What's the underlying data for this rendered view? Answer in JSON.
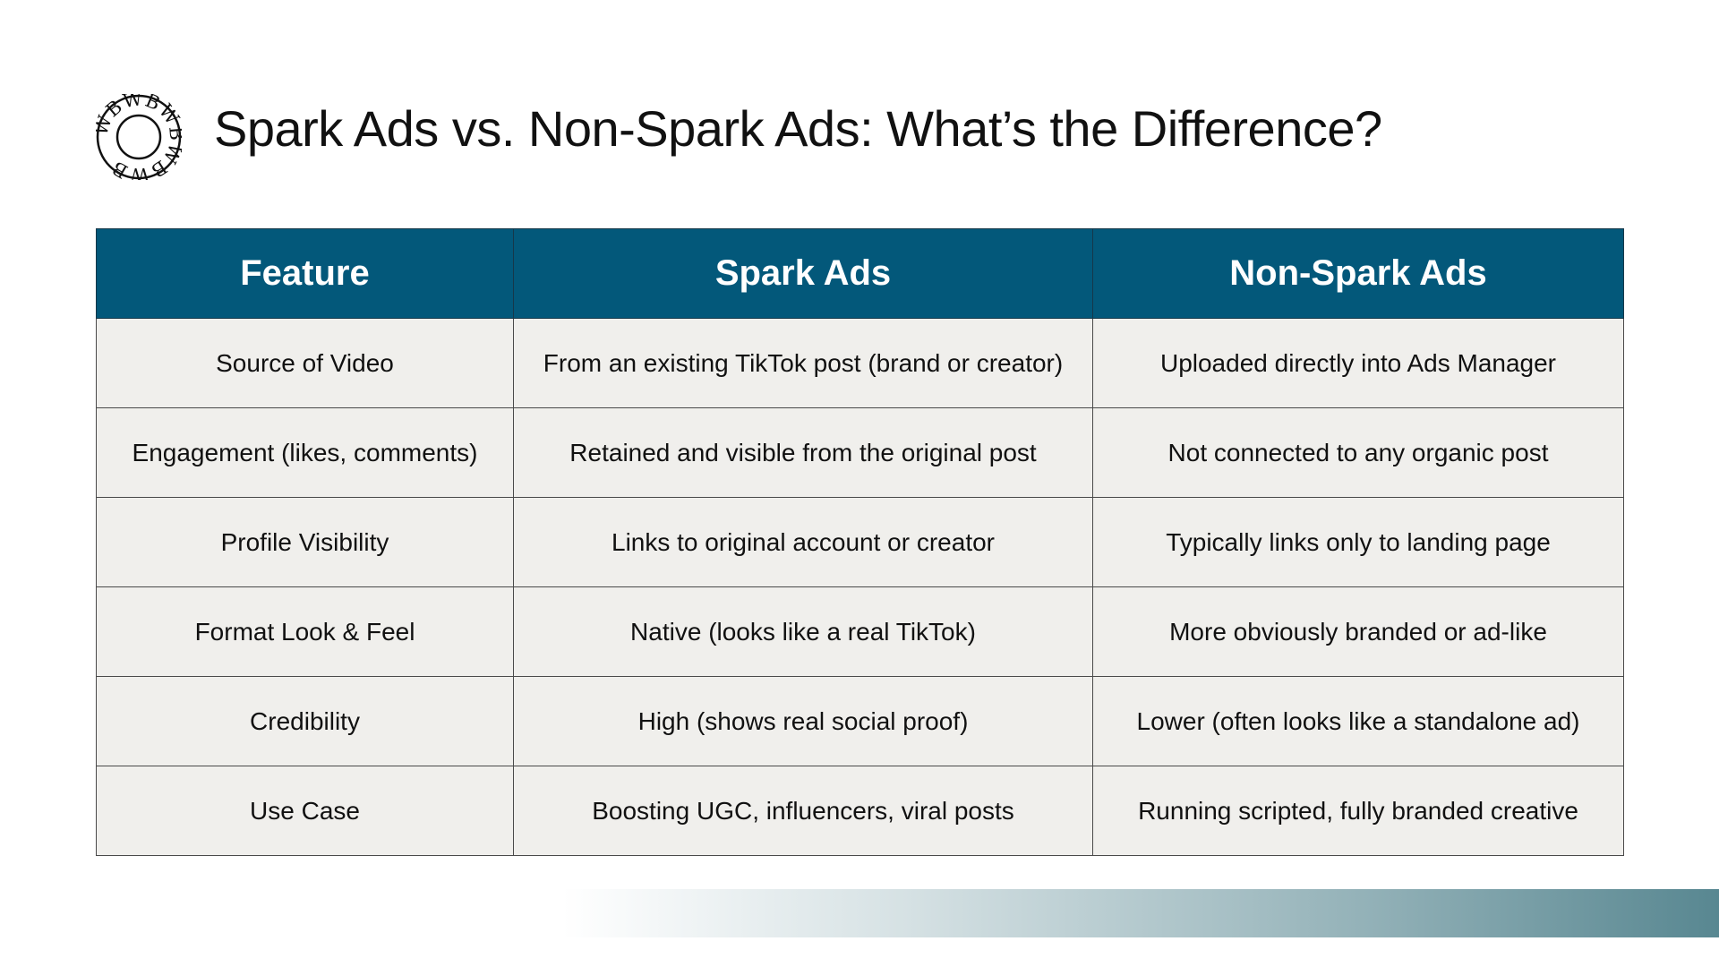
{
  "title": "Spark Ads vs. Non-Spark Ads: What’s the Difference?",
  "logo": {
    "icon": "circular-text-logo-icon",
    "text": "WBWBWBWBWB"
  },
  "table": {
    "headers": [
      "Feature",
      "Spark Ads",
      "Non-Spark Ads"
    ],
    "rows": [
      [
        "Source of Video",
        "From an existing TikTok post (brand or creator)",
        "Uploaded directly into Ads Manager"
      ],
      [
        "Engagement (likes, comments)",
        "Retained and visible from the original post",
        "Not connected to any organic post"
      ],
      [
        "Profile Visibility",
        "Links to original account or creator",
        "Typically links only to landing page"
      ],
      [
        "Format Look & Feel",
        "Native (looks like a real TikTok)",
        "More obviously branded or ad-like"
      ],
      [
        "Credibility",
        "High (shows real social proof)",
        "Lower (often looks like a standalone ad)"
      ],
      [
        "Use Case",
        "Boosting UGC, influencers, viral posts",
        "Running scripted, fully branded creative"
      ]
    ]
  },
  "colors": {
    "header_bg": "#03587a",
    "cell_bg": "#f0efec",
    "accent_gradient_end": "#588791"
  }
}
